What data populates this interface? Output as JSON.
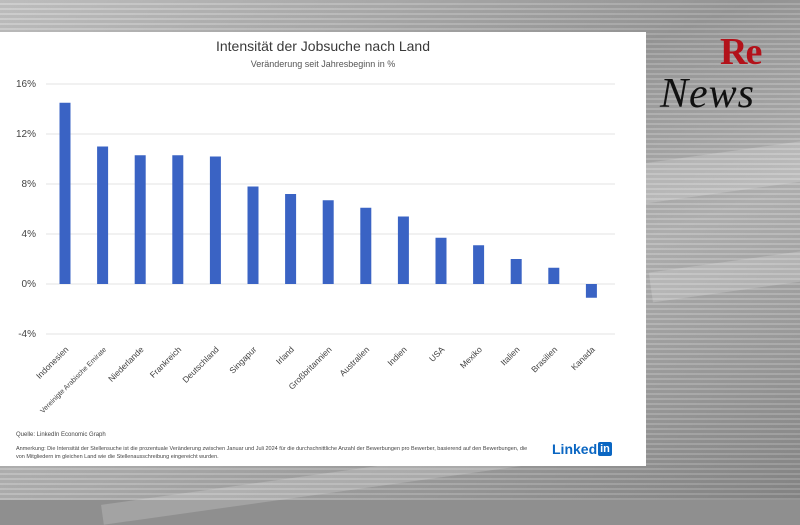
{
  "logo": {
    "re": "Re",
    "news": "News"
  },
  "chart_data": {
    "type": "bar",
    "title": "Intensität der Jobsuche nach Land",
    "subtitle": "Veränderung seit Jahresbeginn in %",
    "categories": [
      "Indonesien",
      "Vereinigte Arabische Emirate",
      "Niederlande",
      "Frankreich",
      "Deutschland",
      "Singapur",
      "Irland",
      "Großbritannien",
      "Australien",
      "Indien",
      "USA",
      "Mexiko",
      "Italien",
      "Brasilien",
      "Kanada"
    ],
    "values": [
      14.5,
      11.0,
      10.3,
      10.3,
      10.2,
      7.8,
      7.2,
      6.7,
      6.1,
      5.4,
      3.7,
      3.1,
      2.0,
      1.3,
      -1.1
    ],
    "yticks": [
      "16%",
      "12%",
      "8%",
      "4%",
      "0%",
      "-4%"
    ],
    "ylim": [
      -4,
      16
    ],
    "grid": true,
    "bar_color": "#3a63c4"
  },
  "footer": {
    "source": "Quelle: LinkedIn Economic Graph",
    "note": "Anmerkung: Die Intensität der Stellensuche ist die prozentuale Veränderung zwischen Januar und Juli 2024 für die durchschnittliche Anzahl der Bewerbungen pro Bewerber, basierend auf den Bewerbungen, die von Mitgliedern im gleichen Land wie die Stellenausschreibung eingereicht wurden.",
    "brand": "Linked",
    "brand_in": "in"
  }
}
